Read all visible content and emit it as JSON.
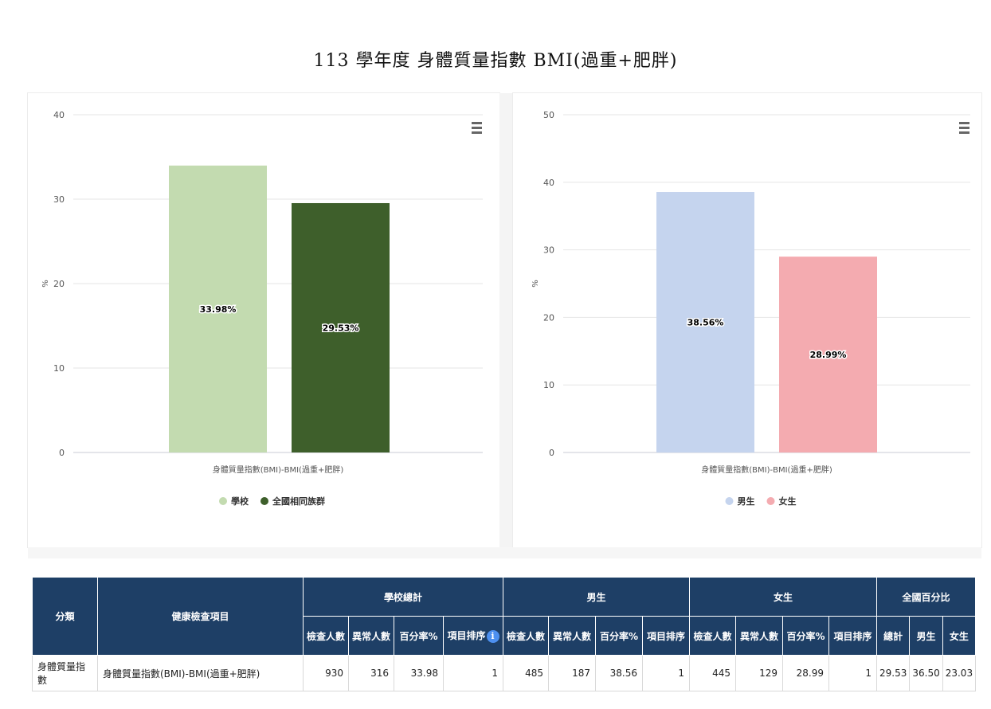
{
  "page_title": "113 學年度 身體質量指數 BMI(過重+肥胖)",
  "chart_data": [
    {
      "type": "bar",
      "categories": [
        "身體質量指數(BMI)-BMI(過重+肥胖)"
      ],
      "series": [
        {
          "name": "學校",
          "values": [
            33.98
          ],
          "label": "33.98%",
          "color": "#c3dbb0"
        },
        {
          "name": "全國相同族群",
          "values": [
            29.53
          ],
          "label": "29.53%",
          "color": "#3e5f2b"
        }
      ],
      "ylabel": "%",
      "ylim": [
        0,
        40
      ],
      "yticks": [
        "0",
        "10",
        "20",
        "30",
        "40"
      ],
      "grid": true,
      "legend": "bottom"
    },
    {
      "type": "bar",
      "categories": [
        "身體質量指數(BMI)-BMI(過重+肥胖)"
      ],
      "series": [
        {
          "name": "男生",
          "values": [
            38.56
          ],
          "label": "38.56%",
          "color": "#c5d4ee"
        },
        {
          "name": "女生",
          "values": [
            28.99
          ],
          "label": "28.99%",
          "color": "#f4abb0"
        }
      ],
      "ylabel": "%",
      "ylim": [
        0,
        50
      ],
      "yticks": [
        "0",
        "10",
        "20",
        "30",
        "40",
        "50"
      ],
      "grid": true,
      "legend": "bottom"
    }
  ],
  "table": {
    "header_category": "分類",
    "header_item": "健康檢查項目",
    "groups": {
      "school": "學校總計",
      "male": "男生",
      "female": "女生",
      "national": "全國百分比"
    },
    "sub": {
      "checked": "檢查人數",
      "abnormal": "異常人數",
      "percent": "百分率%",
      "rank": "項目排序",
      "total": "總計",
      "male": "男生",
      "female": "女生"
    },
    "row": {
      "category": "身體質量指數",
      "item": "身體質量指數(BMI)-BMI(過重+肥胖)",
      "school_checked": "930",
      "school_abnormal": "316",
      "school_percent": "33.98",
      "school_rank": "1",
      "male_checked": "485",
      "male_abnormal": "187",
      "male_percent": "38.56",
      "male_rank": "1",
      "female_checked": "445",
      "female_abnormal": "129",
      "female_percent": "28.99",
      "female_rank": "1",
      "nat_total": "29.53",
      "nat_male": "36.50",
      "nat_female": "23.03"
    }
  }
}
